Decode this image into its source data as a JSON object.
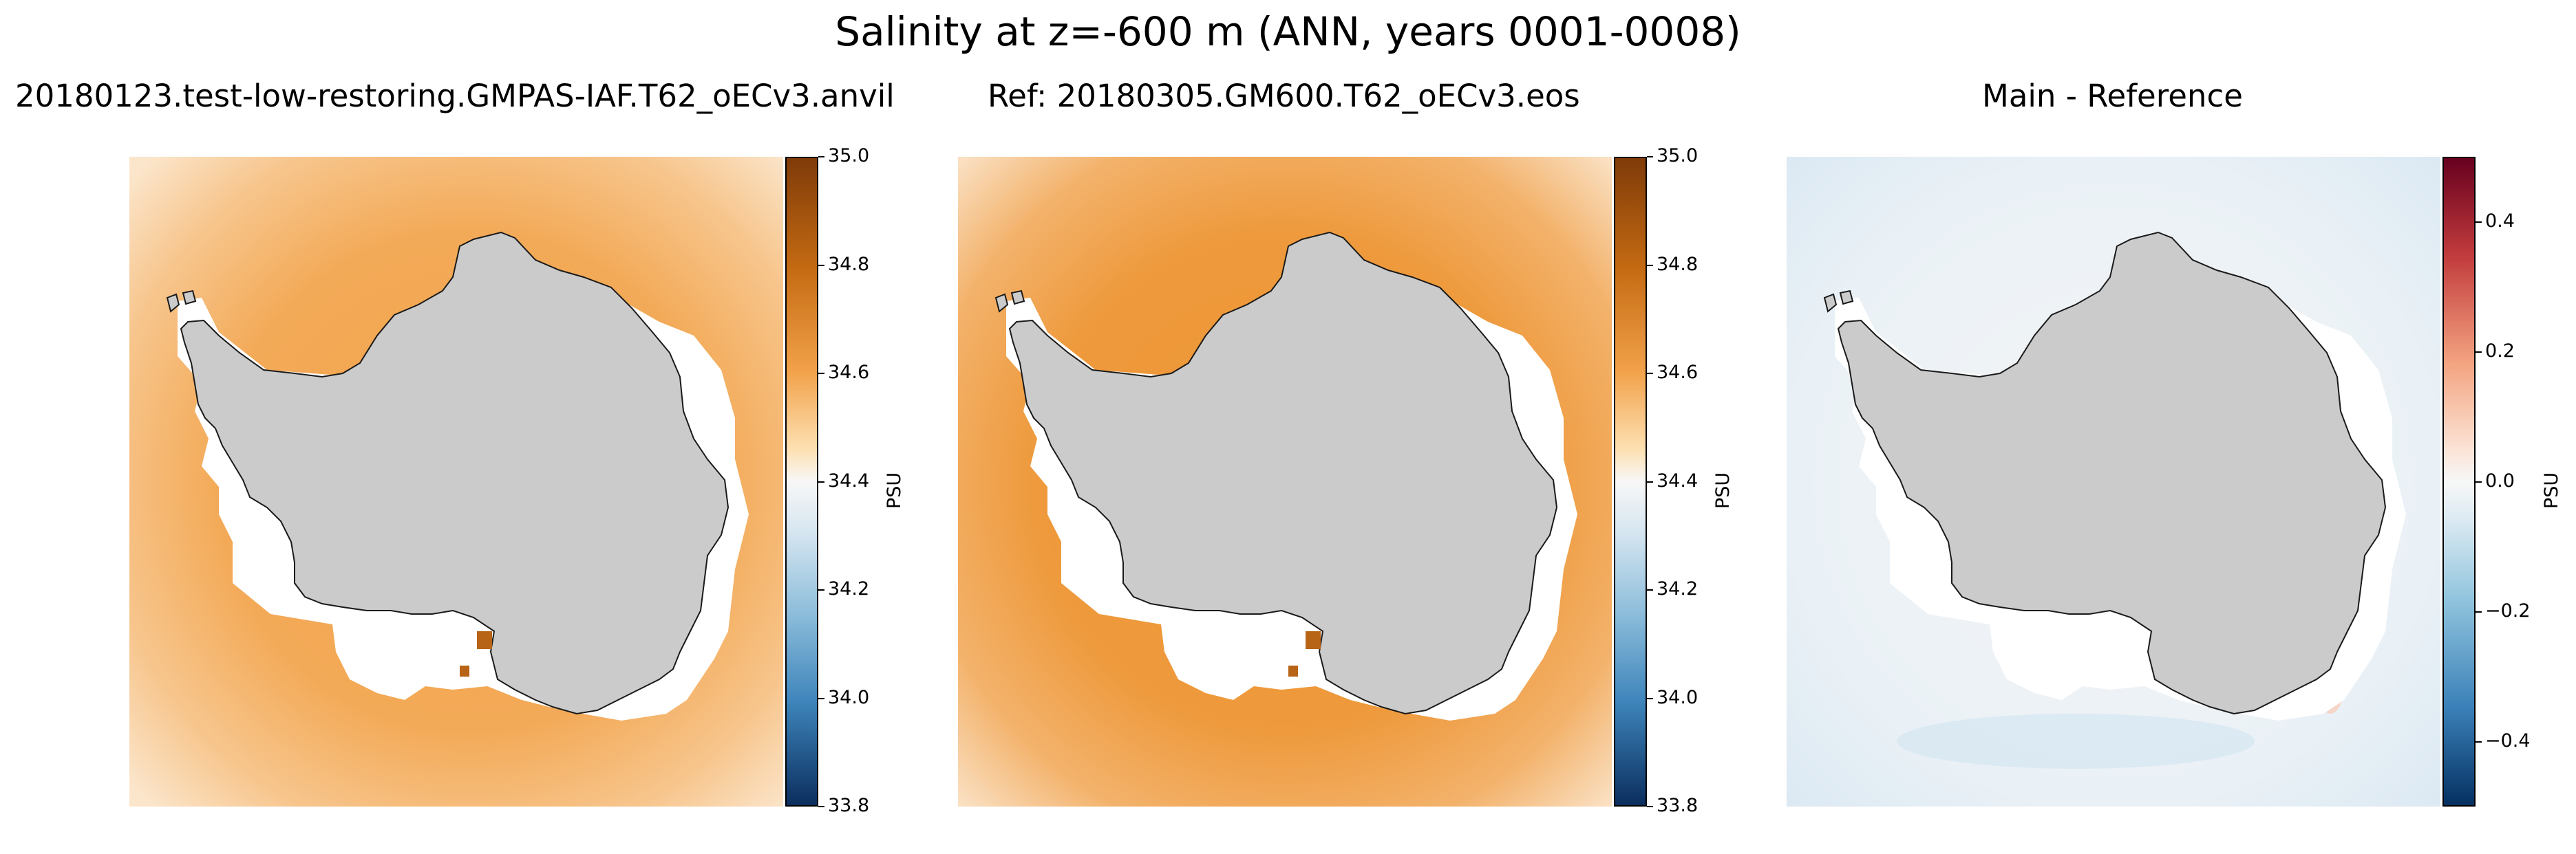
{
  "figure": {
    "suptitle": "Salinity at z=-600 m (ANN, years 0001-0008)"
  },
  "chart_data": [
    {
      "type": "heatmap",
      "panel": "main",
      "title": "20180123.test-low-restoring.GMPAS-IAF.T62_oECv3.anvil",
      "colorbar_label": "PSU",
      "colormap": "PuOr_r-like (blue to orange)",
      "vmin": 33.8,
      "vmax": 35.0,
      "colorbar_ticks": [
        35.0,
        34.8,
        34.6,
        34.4,
        34.2,
        34.0,
        33.8
      ],
      "colorbar_tick_labels": [
        "35.0",
        "34.8",
        "34.6",
        "34.4",
        "34.2",
        "34.0",
        "33.8"
      ],
      "land_color": "#cbcbcb",
      "ocean_color": "#f2a650"
    },
    {
      "type": "heatmap",
      "panel": "reference",
      "title": "Ref: 20180305.GM600.T62_oECv3.eos",
      "colorbar_label": "PSU",
      "colormap": "PuOr_r-like (blue to orange)",
      "vmin": 33.8,
      "vmax": 35.0,
      "colorbar_ticks": [
        35.0,
        34.8,
        34.6,
        34.4,
        34.2,
        34.0,
        33.8
      ],
      "colorbar_tick_labels": [
        "35.0",
        "34.8",
        "34.6",
        "34.4",
        "34.2",
        "34.0",
        "33.8"
      ],
      "land_color": "#cbcbcb",
      "ocean_color": "#ed9a3c"
    },
    {
      "type": "heatmap",
      "panel": "difference",
      "title": "Main - Reference",
      "colorbar_label": "PSU",
      "colormap": "RdBu_r",
      "vmin": -0.5,
      "vmax": 0.5,
      "colorbar_ticks": [
        0.4,
        0.2,
        0.0,
        -0.2,
        -0.4
      ],
      "colorbar_tick_labels": [
        "0.4",
        "0.2",
        "0.0",
        "−0.2",
        "−0.4"
      ],
      "land_color": "#cbcbcb",
      "ocean_color": "#f1f4f6"
    }
  ]
}
